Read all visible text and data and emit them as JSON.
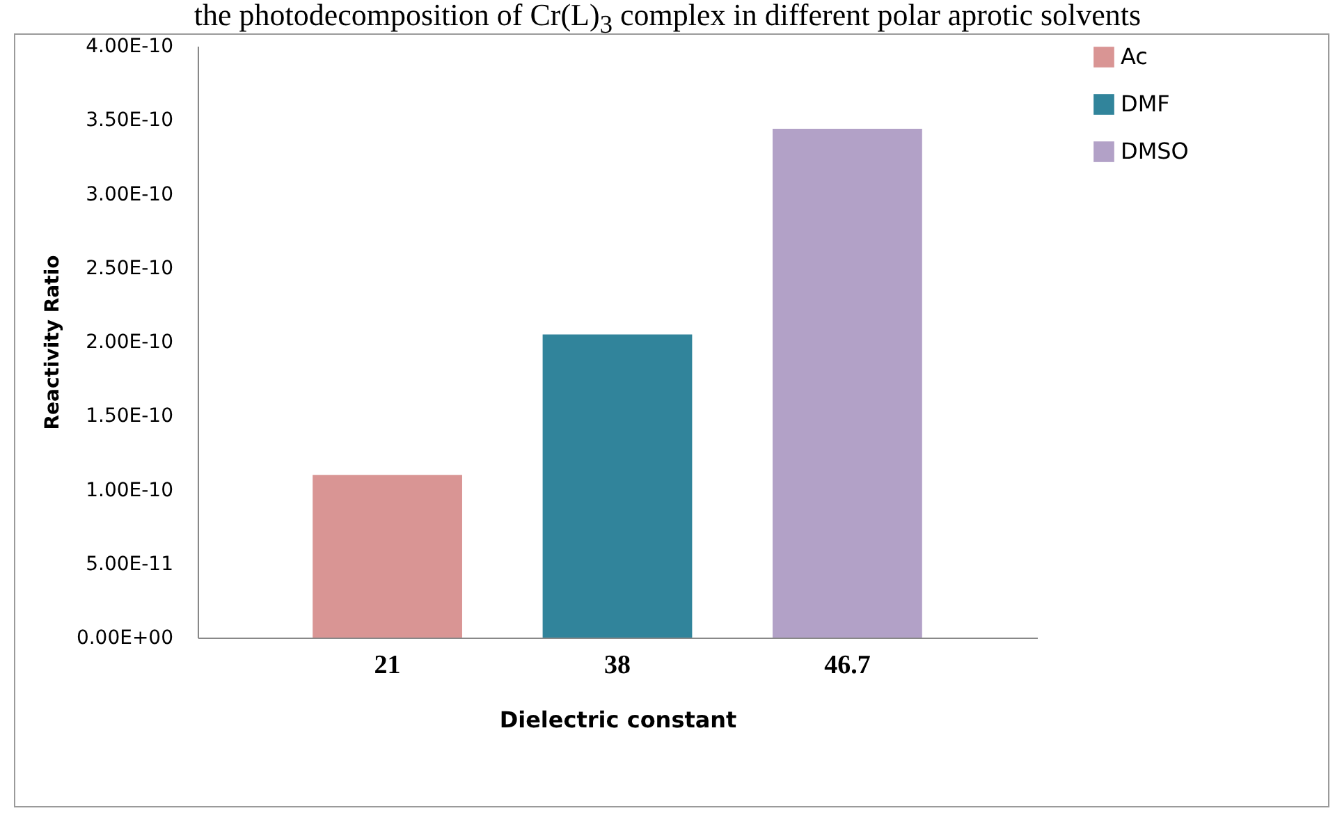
{
  "chart_data": {
    "type": "bar",
    "title": "the photodecomposition of Cr(L)$_{3}$ complex in different polar aprotic solvents",
    "xlabel": "Dielectric constant",
    "ylabel": "Reactivity Ratio",
    "categories": [
      "21",
      "38",
      "46.7"
    ],
    "stacked": true,
    "series": [
      {
        "name": "Ac",
        "color": "#d99594",
        "values": [
          1.1e-10,
          null,
          null
        ]
      },
      {
        "name": "DMF",
        "color": "#31849b",
        "values": [
          null,
          2.05e-10,
          null
        ]
      },
      {
        "name": "DMSO",
        "color": "#b2a1c7",
        "values": [
          null,
          null,
          3.44e-10
        ]
      }
    ],
    "ylim": [
      0,
      4e-10
    ],
    "yticks": [
      {
        "value": 0,
        "label": "0.00E+00"
      },
      {
        "value": 5e-11,
        "label": "5.00E-11"
      },
      {
        "value": 1e-10,
        "label": "1.00E-10"
      },
      {
        "value": 1.5e-10,
        "label": "1.50E-10"
      },
      {
        "value": 2e-10,
        "label": "2.00E-10"
      },
      {
        "value": 2.5e-10,
        "label": "2.50E-10"
      },
      {
        "value": 3e-10,
        "label": "3.00E-10"
      },
      {
        "value": 3.5e-10,
        "label": "3.50E-10"
      },
      {
        "value": 4e-10,
        "label": "4.00E-10"
      }
    ],
    "grid": false,
    "legend": "right"
  }
}
